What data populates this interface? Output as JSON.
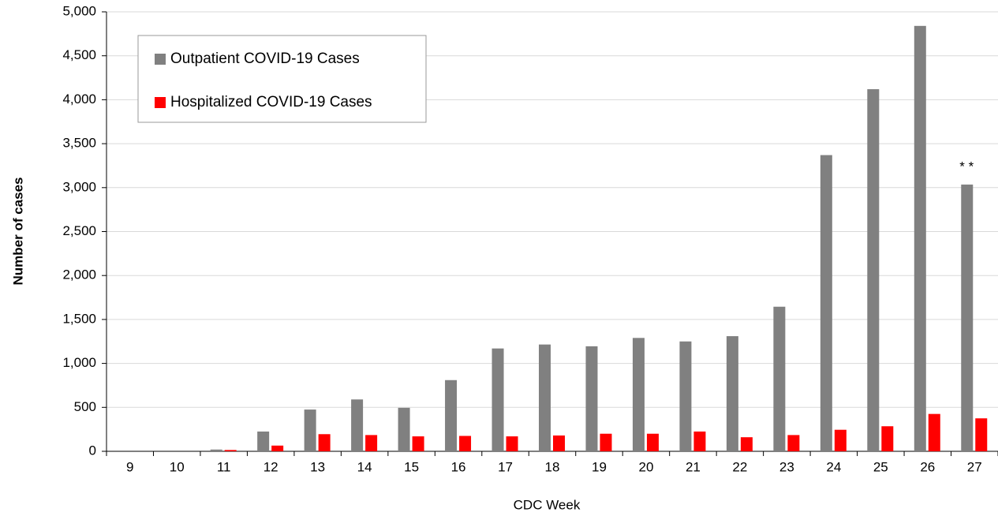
{
  "chart_data": {
    "type": "bar",
    "x_label": "CDC Week",
    "y_label": "Number of cases",
    "categories": [
      "9",
      "10",
      "11",
      "12",
      "13",
      "14",
      "15",
      "16",
      "17",
      "18",
      "19",
      "20",
      "21",
      "22",
      "23",
      "24",
      "25",
      "26",
      "27"
    ],
    "series": [
      {
        "name": "Outpatient COVID-19 Cases",
        "color": "#808080",
        "values": [
          0,
          0,
          20,
          225,
          475,
          590,
          495,
          810,
          1170,
          1215,
          1195,
          1290,
          1250,
          1310,
          1645,
          3370,
          4120,
          4840,
          3035
        ]
      },
      {
        "name": "Hospitalized COVID-19 Cases",
        "color": "#ff0000",
        "values": [
          0,
          0,
          15,
          65,
          195,
          185,
          170,
          175,
          170,
          180,
          200,
          200,
          225,
          160,
          185,
          245,
          285,
          425,
          375
        ]
      }
    ],
    "annotation": "* *",
    "ylim": [
      0,
      5000
    ],
    "yticks": [
      0,
      500,
      {
        "value": 1000,
        "label": "1,000"
      },
      {
        "value": 1500,
        "label": "1,500"
      },
      {
        "value": 2000,
        "label": "2,000"
      },
      {
        "value": 2500,
        "label": "2,500"
      },
      {
        "value": 3000,
        "label": "3,000"
      },
      {
        "value": 3500,
        "label": "3,500"
      },
      {
        "value": 4000,
        "label": "4,000"
      },
      {
        "value": 4500,
        "label": "4,500"
      },
      {
        "value": 5000,
        "label": "5,000"
      }
    ],
    "grid": true,
    "legend": "upper left"
  }
}
